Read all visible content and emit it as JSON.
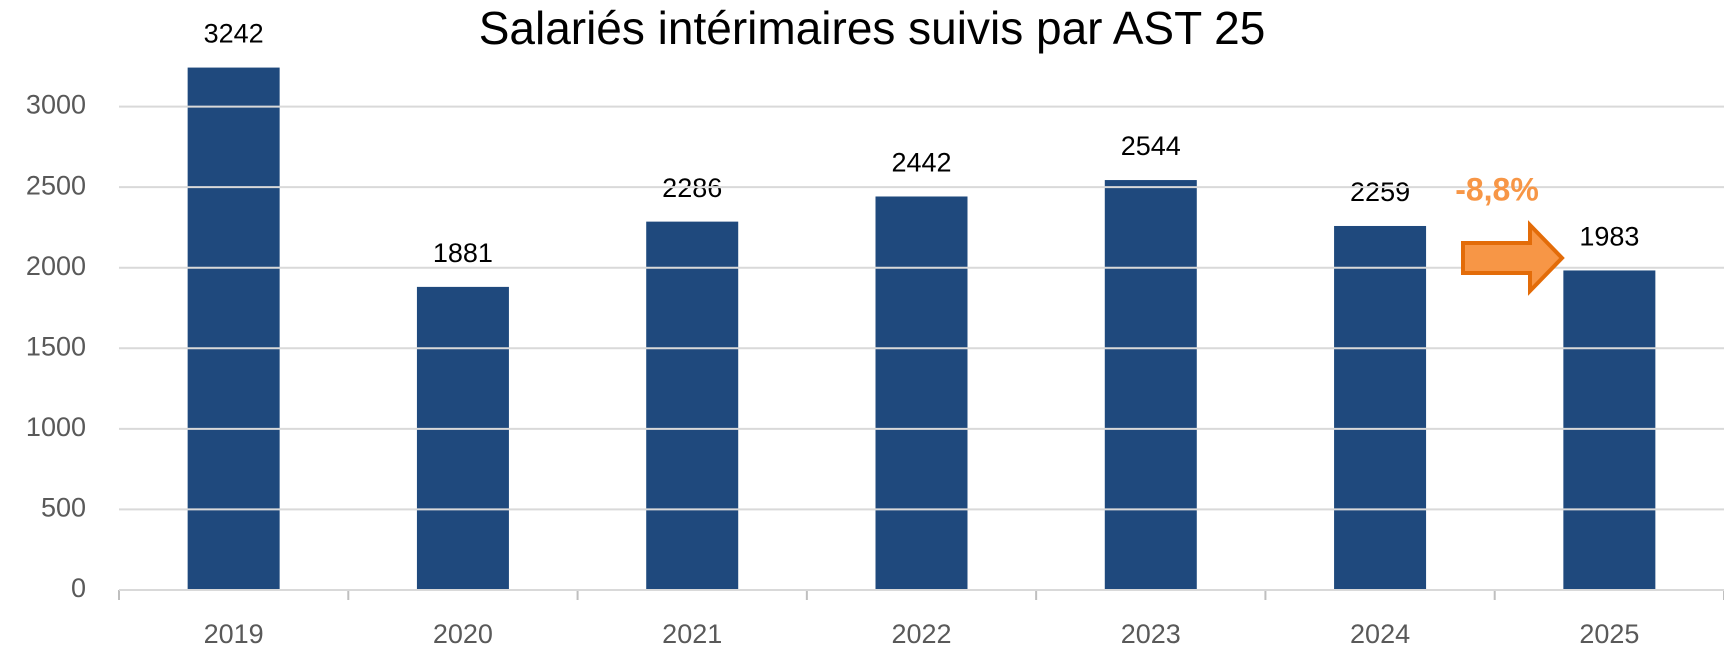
{
  "chart_data": {
    "type": "bar",
    "title": "Salariés intérimaires suivis par AST 25",
    "categories": [
      "2019",
      "2020",
      "2021",
      "2022",
      "2023",
      "2024",
      "2025"
    ],
    "values": [
      3242,
      1881,
      2286,
      2442,
      2544,
      2259,
      1983
    ],
    "color": "#1f497d",
    "ylim": [
      0,
      3500
    ],
    "yticks": [
      0,
      500,
      1000,
      1500,
      2000,
      2500,
      3000
    ],
    "grid": true,
    "annotation": "-8,8%"
  }
}
